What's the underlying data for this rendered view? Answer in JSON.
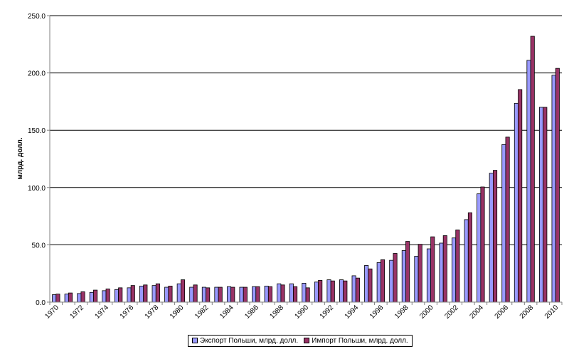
{
  "chart_data": {
    "type": "bar",
    "ylabel": "млрд. долл.",
    "ylim": [
      0,
      250
    ],
    "yticks": [
      "0.0",
      "50.0",
      "100.0",
      "150.0",
      "200.0",
      "250.0"
    ],
    "grid": true,
    "legend_position": "bottom",
    "categories": [
      "1970",
      "1971",
      "1972",
      "1973",
      "1974",
      "1975",
      "1976",
      "1977",
      "1978",
      "1979",
      "1980",
      "1981",
      "1982",
      "1983",
      "1984",
      "1985",
      "1986",
      "1987",
      "1988",
      "1989",
      "1990",
      "1991",
      "1992",
      "1993",
      "1994",
      "1995",
      "1996",
      "1997",
      "1998",
      "1999",
      "2000",
      "2001",
      "2002",
      "2003",
      "2004",
      "2005",
      "2006",
      "2007",
      "2008",
      "2009",
      "2010"
    ],
    "series": [
      {
        "name": "Экспорт Польши, млрд. долл.",
        "color": "#9999ff",
        "values": [
          6.5,
          7,
          7.5,
          8.5,
          10,
          11,
          12.5,
          14,
          14.5,
          13,
          16,
          13,
          13,
          13,
          13.5,
          13,
          13.5,
          14,
          16,
          16,
          16.5,
          17.5,
          19.5,
          19.5,
          23,
          32,
          34.5,
          36.5,
          45,
          40,
          46.5,
          51.5,
          56,
          72,
          94.5,
          112.5,
          137.5,
          173.5,
          211,
          170,
          198
        ]
      },
      {
        "name": "Импорт Польши, млрд. долл.",
        "color": "#993366",
        "values": [
          7,
          8,
          9,
          10.5,
          11.5,
          12.5,
          14.5,
          15,
          16,
          14,
          19.5,
          15,
          12.5,
          13,
          13,
          13,
          13.5,
          13.5,
          15,
          13.5,
          12.5,
          19,
          18.5,
          18.5,
          21,
          29,
          37,
          42.5,
          53,
          50.5,
          57,
          58,
          63,
          78,
          100.5,
          115,
          144,
          185.5,
          232,
          170,
          204
        ]
      }
    ]
  }
}
